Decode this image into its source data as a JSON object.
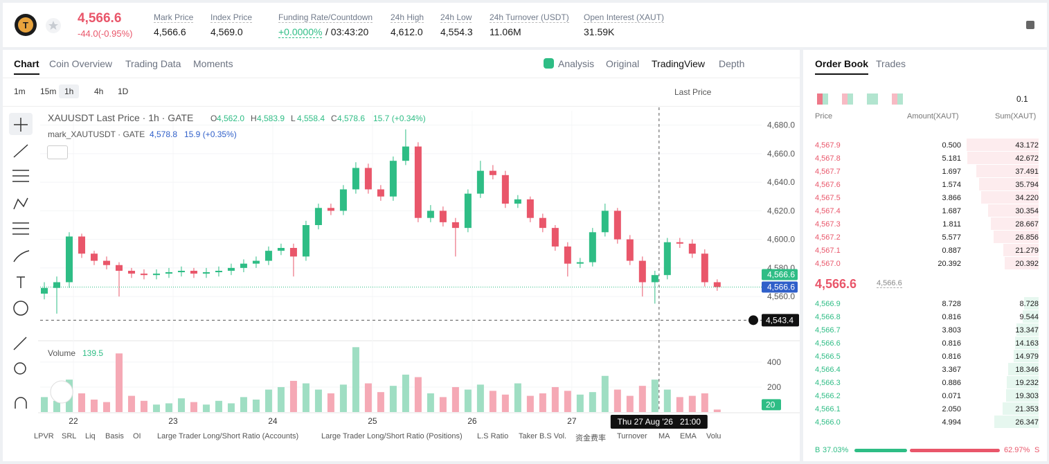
{
  "header": {
    "price": "4,566.6",
    "change": "-44.0(-0.95%)",
    "stats": [
      {
        "label": "Mark Price",
        "value": "4,566.6"
      },
      {
        "label": "Index Price",
        "value": "4,569.0"
      },
      {
        "label": "Funding Rate/Countdown",
        "value": "+0.0000%",
        "extra": "/ 03:43:20"
      },
      {
        "label": "24h High",
        "value": "4,612.0"
      },
      {
        "label": "24h Low",
        "value": "4,554.3"
      },
      {
        "label": "24h Turnover (USDT)",
        "value": "11.06M"
      },
      {
        "label": "Open Interest (XAUT)",
        "value": "31.59K"
      }
    ]
  },
  "chart_tabs": [
    "Chart",
    "Coin Overview",
    "Trading Data",
    "Moments"
  ],
  "view_tabs": [
    "Analysis",
    "Original",
    "TradingView",
    "Depth"
  ],
  "intervals": [
    "1m",
    "15m",
    "1h",
    "4h",
    "1D"
  ],
  "price_type": "Last Price",
  "legend": {
    "title": "XAUUSDT Last Price · 1h · GATE",
    "ohlc": [
      {
        "k": "O",
        "v": "4,562.0"
      },
      {
        "k": "H",
        "v": "4,583.9"
      },
      {
        "k": "L",
        "v": "4,558.4"
      },
      {
        "k": "C",
        "v": "4,578.6"
      }
    ],
    "change": "15.7 (+0.34%)",
    "mark_title": "mark_XAUTUSDT · GATE",
    "mark_value": "4,578.8",
    "mark_change": "15.9 (+0.35%)",
    "volume_title": "Volume",
    "volume_value": "139.5"
  },
  "chart_data": {
    "type": "candlestick",
    "up_color": "#2ebd85",
    "down_color": "#e9566a",
    "x": [
      1,
      4,
      7,
      10,
      13,
      16,
      19,
      22,
      25,
      28,
      31,
      34,
      37,
      40,
      43,
      46,
      49,
      52,
      55,
      58,
      61,
      64,
      67,
      70,
      73,
      76,
      79,
      82,
      85,
      88,
      91,
      94,
      97,
      100,
      103,
      106,
      109,
      112,
      115,
      118,
      121,
      124,
      127,
      130,
      133,
      136,
      139,
      142,
      145,
      148,
      151,
      154,
      157,
      160,
      163
    ],
    "open": [
      4562,
      4566,
      4570,
      4602,
      4590,
      4585,
      4582,
      4578,
      4576,
      4575,
      4576,
      4577,
      4578,
      4576,
      4577,
      4578,
      4580,
      4583,
      4585,
      4592,
      4594,
      4588,
      4610,
      4622,
      4620,
      4635,
      4650,
      4635,
      4630,
      4655,
      4665,
      4615,
      4620,
      4612,
      4608,
      4632,
      4648,
      4645,
      4625,
      4628,
      4615,
      4608,
      4595,
      4583,
      4584,
      4605,
      4620,
      4600,
      4585,
      4570,
      4575,
      4598,
      4597,
      4590,
      4570
    ],
    "high": [
      4570,
      4574,
      4605,
      4604,
      4592,
      4588,
      4584,
      4580,
      4579,
      4579,
      4580,
      4581,
      4580,
      4580,
      4581,
      4583,
      4586,
      4588,
      4595,
      4597,
      4597,
      4613,
      4625,
      4625,
      4638,
      4654,
      4653,
      4638,
      4658,
      4677,
      4668,
      4624,
      4623,
      4615,
      4635,
      4655,
      4652,
      4648,
      4631,
      4630,
      4618,
      4610,
      4598,
      4587,
      4608,
      4625,
      4622,
      4603,
      4588,
      4578,
      4601,
      4601,
      4600,
      4593,
      4572
    ],
    "low": [
      4558,
      4548,
      4566,
      4587,
      4582,
      4579,
      4560,
      4573,
      4572,
      4572,
      4573,
      4574,
      4573,
      4573,
      4574,
      4575,
      4577,
      4580,
      4582,
      4589,
      4574,
      4585,
      4607,
      4617,
      4617,
      4632,
      4632,
      4627,
      4627,
      4652,
      4612,
      4612,
      4609,
      4588,
      4605,
      4629,
      4642,
      4622,
      4622,
      4612,
      4605,
      4592,
      4574,
      4580,
      4581,
      4602,
      4597,
      4582,
      4560,
      4555,
      4572,
      4594,
      4587,
      4567,
      4564
    ],
    "close": [
      4566,
      4570,
      4602,
      4590,
      4585,
      4582,
      4578,
      4576,
      4575,
      4576,
      4577,
      4578,
      4576,
      4577,
      4578,
      4580,
      4583,
      4585,
      4592,
      4594,
      4588,
      4610,
      4622,
      4620,
      4635,
      4650,
      4635,
      4630,
      4655,
      4665,
      4615,
      4620,
      4612,
      4608,
      4632,
      4648,
      4645,
      4625,
      4628,
      4615,
      4608,
      4595,
      4583,
      4584,
      4605,
      4620,
      4600,
      4585,
      4570,
      4575,
      4598,
      4597,
      4590,
      4570,
      4566.6
    ],
    "volume": [
      120,
      90,
      260,
      150,
      100,
      80,
      470,
      130,
      90,
      60,
      70,
      110,
      80,
      60,
      90,
      70,
      120,
      100,
      180,
      200,
      250,
      230,
      180,
      150,
      220,
      520,
      230,
      160,
      210,
      300,
      280,
      150,
      120,
      200,
      180,
      220,
      170,
      140,
      230,
      130,
      150,
      200,
      170,
      140,
      160,
      290,
      180,
      130,
      210,
      260,
      180,
      120,
      130,
      150,
      20
    ],
    "xlim": [
      0,
      173.7
    ],
    "xticks": [
      {
        "value": 8,
        "label": "22"
      },
      {
        "value": 32,
        "label": "23"
      },
      {
        "value": 56,
        "label": "24"
      },
      {
        "value": 80,
        "label": "25"
      },
      {
        "value": 104,
        "label": "26"
      },
      {
        "value": 128,
        "label": "27"
      }
    ],
    "ylim": [
      4530,
      4690
    ],
    "yticks": [
      {
        "value": 4560,
        "label": "4,560.0"
      },
      {
        "value": 4580,
        "label": "4,580.0"
      },
      {
        "value": 4600,
        "label": "4,600.0"
      },
      {
        "value": 4620,
        "label": "4,620.0"
      },
      {
        "value": 4640,
        "label": "4,640.0"
      },
      {
        "value": 4660,
        "label": "4,660.0"
      },
      {
        "value": 4680,
        "label": "4,680.0"
      }
    ],
    "volume_ylim": [
      0,
      555
    ],
    "volume_yticks": [
      200,
      400
    ],
    "last_price": {
      "value": 4566.6,
      "label": "4,566.6"
    },
    "volume_last": 20,
    "crosshair_y": {
      "value": 4543.4,
      "label": "4,543.4"
    },
    "crosshair_x": {
      "value": 149,
      "label": "Thu 27 Aug '26   21:00"
    }
  },
  "indicators": [
    "LPVR",
    "SRL",
    "Liq",
    "Basis",
    "OI",
    "Large Trader Long/Short Ratio (Accounts)",
    "Large Trader Long/Short Ratio (Positions)",
    "L.S Ratio",
    "Taker B.S Vol.",
    "资金费率",
    "Turnover",
    "MA",
    "EMA",
    "Volu"
  ],
  "orderbook": {
    "tabs": [
      "Order Book",
      "Trades"
    ],
    "precision": "0.1",
    "columns": [
      "Price",
      "Amount(XAUT)",
      "Sum(XAUT)"
    ],
    "asks": {
      "price": [
        "4,567.9",
        "4,567.8",
        "4,567.7",
        "4,567.6",
        "4,567.5",
        "4,567.4",
        "4,567.3",
        "4,567.2",
        "4,567.1",
        "4,567.0"
      ],
      "amount": [
        "0.500",
        "5.181",
        "1.697",
        "1.574",
        "3.866",
        "1.687",
        "1.811",
        "5.577",
        "0.887",
        "20.392"
      ],
      "sum": [
        43.172,
        42.672,
        37.491,
        35.794,
        {
          "value": 34.22,
          "label": "34.220"
        },
        30.354,
        28.667,
        26.856,
        21.279,
        20.392
      ]
    },
    "mid_price": "4,566.6",
    "mid_mark": "4,566.6",
    "bids": {
      "price": [
        "4,566.9",
        "4,566.8",
        "4,566.7",
        "4,566.6",
        "4,566.5",
        "4,566.4",
        "4,566.3",
        "4,566.2",
        "4,566.1",
        "4,566.0"
      ],
      "amount": [
        "8.728",
        "0.816",
        "3.803",
        "0.816",
        "0.816",
        "3.367",
        "0.886",
        "0.071",
        "2.050",
        "4.994"
      ],
      "sum": [
        8.728,
        9.544,
        13.347,
        14.163,
        14.979,
        18.346,
        19.232,
        19.303,
        21.353,
        26.347
      ]
    },
    "buy_letter": "B",
    "buy": {
      "value": 37.03,
      "label": "37.03%"
    },
    "sell": {
      "value": 62.97,
      "label": "62.97%"
    },
    "sell_letter": "S"
  }
}
